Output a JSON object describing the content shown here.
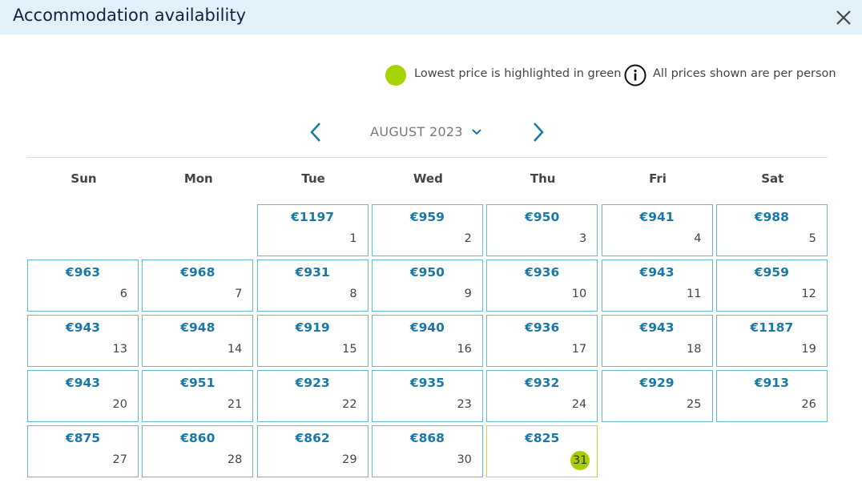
{
  "header": {
    "title": "Accommodation availability"
  },
  "legend": {
    "lowest": "Lowest price is highlighted in green",
    "per_person": "All prices shown are per person"
  },
  "calendar": {
    "month": "AUGUST 2023",
    "weekdays": [
      "Sun",
      "Mon",
      "Tue",
      "Wed",
      "Thu",
      "Fri",
      "Sat"
    ],
    "days": [
      {
        "day": 1,
        "price": "€1197"
      },
      {
        "day": 2,
        "price": "€959"
      },
      {
        "day": 3,
        "price": "€950"
      },
      {
        "day": 4,
        "price": "€941"
      },
      {
        "day": 5,
        "price": "€988"
      },
      {
        "day": 6,
        "price": "€963"
      },
      {
        "day": 7,
        "price": "€968"
      },
      {
        "day": 8,
        "price": "€931"
      },
      {
        "day": 9,
        "price": "€950"
      },
      {
        "day": 10,
        "price": "€936"
      },
      {
        "day": 11,
        "price": "€943"
      },
      {
        "day": 12,
        "price": "€959"
      },
      {
        "day": 13,
        "price": "€943"
      },
      {
        "day": 14,
        "price": "€948"
      },
      {
        "day": 15,
        "price": "€919"
      },
      {
        "day": 16,
        "price": "€940"
      },
      {
        "day": 17,
        "price": "€936"
      },
      {
        "day": 18,
        "price": "€943"
      },
      {
        "day": 19,
        "price": "€1187"
      },
      {
        "day": 20,
        "price": "€943"
      },
      {
        "day": 21,
        "price": "€951"
      },
      {
        "day": 22,
        "price": "€923"
      },
      {
        "day": 23,
        "price": "€935"
      },
      {
        "day": 24,
        "price": "€932"
      },
      {
        "day": 25,
        "price": "€929"
      },
      {
        "day": 26,
        "price": "€913"
      },
      {
        "day": 27,
        "price": "€875"
      },
      {
        "day": 28,
        "price": "€860"
      },
      {
        "day": 29,
        "price": "€862"
      },
      {
        "day": 30,
        "price": "€868"
      },
      {
        "day": 31,
        "price": "€825",
        "highlighted": true
      }
    ]
  }
}
